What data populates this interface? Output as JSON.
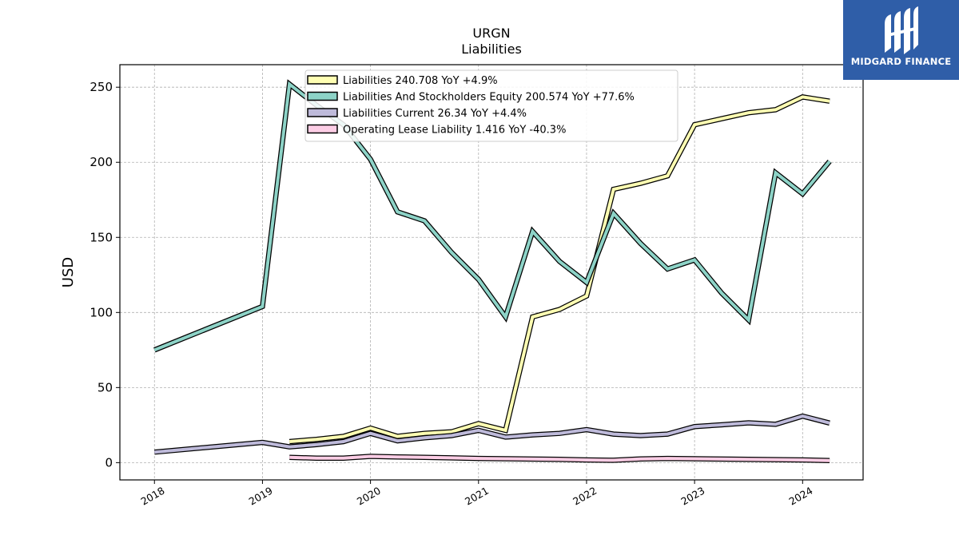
{
  "chart_data": {
    "type": "line",
    "title": "URGN",
    "subtitle": "Liabilities",
    "ylabel": "USD",
    "xlabel": "",
    "ylim": [
      -11.5,
      265
    ],
    "xlim": [
      2017.68,
      2024.56
    ],
    "grid": true,
    "legend_position": "top-center",
    "x_ticks": [
      "2018",
      "2019",
      "2020",
      "2021",
      "2022",
      "2023",
      "2024"
    ],
    "y_ticks": [
      "0",
      "50",
      "100",
      "150",
      "200",
      "250"
    ],
    "series": [
      {
        "name": "Liabilities",
        "legend": "Liabilities  240.708 YoY +4.9%",
        "color": "#ffffb3",
        "points": [
          [
            2019.25,
            14
          ],
          [
            2019.5,
            15.5
          ],
          [
            2019.75,
            17.5
          ],
          [
            2020.0,
            23
          ],
          [
            2020.25,
            17.5
          ],
          [
            2020.5,
            19.5
          ],
          [
            2020.75,
            20.5
          ],
          [
            2021.0,
            26
          ],
          [
            2021.25,
            21.5
          ],
          [
            2021.5,
            97
          ],
          [
            2021.75,
            102
          ],
          [
            2022.0,
            111
          ],
          [
            2022.25,
            182
          ],
          [
            2022.5,
            186
          ],
          [
            2022.75,
            191
          ],
          [
            2023.0,
            225
          ],
          [
            2023.25,
            229
          ],
          [
            2023.5,
            233
          ],
          [
            2023.75,
            235
          ],
          [
            2024.0,
            243.5
          ],
          [
            2024.25,
            240.7
          ]
        ]
      },
      {
        "name": "Liabilities And Stockholders Equity",
        "legend": "Liabilities And Stockholders Equity  200.574 YoY +77.6%",
        "color": "#8dd3c7",
        "points": [
          [
            2018.0,
            75
          ],
          [
            2019.0,
            104
          ],
          [
            2019.25,
            252
          ],
          [
            2019.5,
            238
          ],
          [
            2019.75,
            225
          ],
          [
            2020.0,
            202
          ],
          [
            2020.25,
            167
          ],
          [
            2020.5,
            161
          ],
          [
            2020.75,
            140
          ],
          [
            2021.0,
            122
          ],
          [
            2021.25,
            97
          ],
          [
            2021.5,
            154
          ],
          [
            2021.75,
            134
          ],
          [
            2022.0,
            120
          ],
          [
            2022.25,
            166
          ],
          [
            2022.5,
            146
          ],
          [
            2022.75,
            129
          ],
          [
            2023.0,
            135
          ],
          [
            2023.25,
            113
          ],
          [
            2023.5,
            95
          ],
          [
            2023.75,
            193
          ],
          [
            2024.0,
            179
          ],
          [
            2024.25,
            200.6
          ]
        ]
      },
      {
        "name": "Liabilities Current",
        "legend": "Liabilities Current  26.34 YoY +4.4%",
        "color": "#bebada",
        "points": [
          [
            2018.0,
            7
          ],
          [
            2019.0,
            13.5
          ],
          [
            2019.25,
            10.5
          ],
          [
            2019.5,
            12
          ],
          [
            2019.75,
            14
          ],
          [
            2020.0,
            19.5
          ],
          [
            2020.25,
            14.5
          ],
          [
            2020.5,
            16.5
          ],
          [
            2020.75,
            18
          ],
          [
            2021.0,
            21.5
          ],
          [
            2021.25,
            17
          ],
          [
            2021.5,
            18.5
          ],
          [
            2021.75,
            19.5
          ],
          [
            2022.0,
            22
          ],
          [
            2022.25,
            19
          ],
          [
            2022.5,
            18
          ],
          [
            2022.75,
            19
          ],
          [
            2023.0,
            24
          ],
          [
            2023.25,
            25.2
          ],
          [
            2023.5,
            26.5
          ],
          [
            2023.75,
            25.5
          ],
          [
            2024.0,
            31
          ],
          [
            2024.25,
            26.34
          ]
        ]
      },
      {
        "name": "Operating Lease Liability",
        "legend": "Operating Lease Liability  1.416 YoY -40.3%",
        "color": "#fccde5",
        "points": [
          [
            2019.25,
            3.5
          ],
          [
            2019.5,
            3
          ],
          [
            2019.75,
            3
          ],
          [
            2020.0,
            4.2
          ],
          [
            2020.25,
            3.8
          ],
          [
            2020.5,
            3.5
          ],
          [
            2020.75,
            3.2
          ],
          [
            2021.0,
            2.8
          ],
          [
            2021.25,
            2.6
          ],
          [
            2021.5,
            2.4
          ],
          [
            2021.75,
            2.2
          ],
          [
            2022.0,
            1.8
          ],
          [
            2022.25,
            1.6
          ],
          [
            2022.5,
            2.5
          ],
          [
            2022.75,
            2.8
          ],
          [
            2023.0,
            2.6
          ],
          [
            2023.25,
            2.4
          ],
          [
            2023.5,
            2.2
          ],
          [
            2023.75,
            2
          ],
          [
            2024.0,
            1.8
          ],
          [
            2024.25,
            1.416
          ]
        ]
      }
    ]
  },
  "logo": {
    "text": "MIDGARD FINANCE",
    "background": "#2f5ea8",
    "icon": "midgard-logo-icon"
  }
}
